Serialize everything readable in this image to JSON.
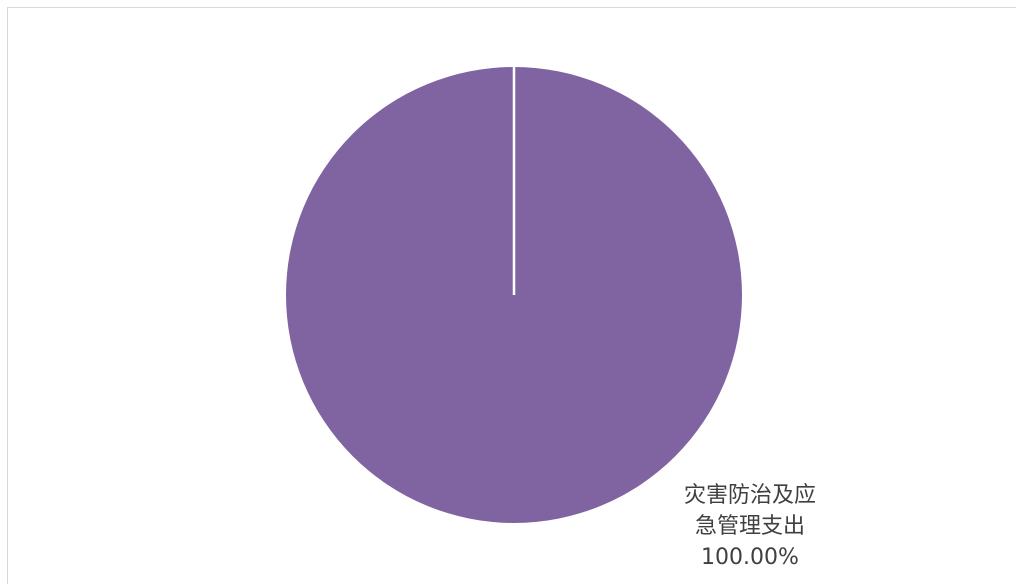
{
  "chart_data": {
    "type": "pie",
    "categories": [
      "灾害防治及应急管理支出"
    ],
    "values": [
      100.0
    ],
    "percent_labels": [
      "100.00%"
    ],
    "colors": [
      "#8064A2"
    ],
    "legend": "none",
    "label_lines": [
      "灾害防治及应",
      "急管理支出"
    ]
  }
}
